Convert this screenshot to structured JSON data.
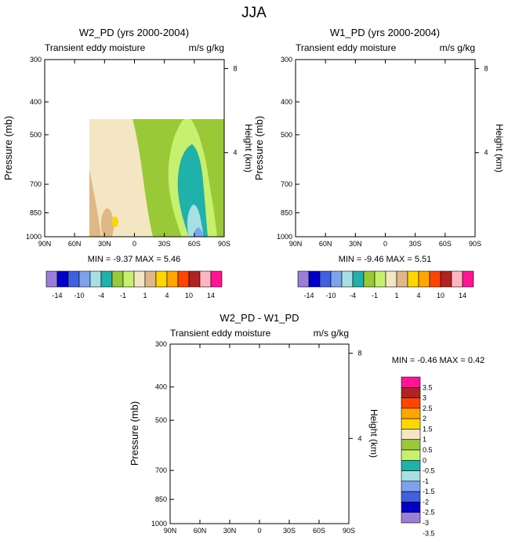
{
  "figure": {
    "title": "JJA",
    "left_panel_note": "MIN = -9.37  MAX =  5.46",
    "right_panel_note": "MIN = -9.46  MAX =  5.51",
    "bottom_panel_note": "MIN = -0.46  MAX =  0.42"
  },
  "colors": {
    "main_scale": [
      "#9b7fd6",
      "#0000c8",
      "#4060e0",
      "#7ea2ec",
      "#a8dfe3",
      "#20b2aa",
      "#99c936",
      "#c6f06e",
      "#f5e6c3",
      "#deb887",
      "#ffd700",
      "#ffa500",
      "#ff4500",
      "#b22222",
      "#ffb6c1",
      "#ff1493"
    ],
    "diff_scale": [
      "#9b7fd6",
      "#0000c8",
      "#4060e0",
      "#7ea2ec",
      "#a8dfe3",
      "#20b2aa",
      "#c6f06e",
      "#99c936",
      "#f5e6c3",
      "#ffd700",
      "#ffa500",
      "#ff4500",
      "#b22222",
      "#ff1493"
    ]
  },
  "chart_data": [
    {
      "id": "w2",
      "type": "heatmap",
      "title": "W2_PD (yrs 2000-2004)",
      "subtitle_left": "Transient eddy moisture",
      "subtitle_right": "m/s g/kg",
      "xlabel": "",
      "ylabel": "Pressure (mb)",
      "ylabel_right": "Height (km)",
      "xlim": [
        90,
        -90
      ],
      "ylim": [
        1000,
        300
      ],
      "x_ticks": [
        "90N",
        "60N",
        "30N",
        "0",
        "30S",
        "60S",
        "90S"
      ],
      "y_ticks": [
        300,
        400,
        500,
        700,
        850,
        1000
      ],
      "y_right_ticks": [
        4,
        8
      ],
      "min": -9.37,
      "max": 5.46,
      "levels": [
        -14,
        -12,
        -10,
        -8,
        -6,
        -4,
        -2,
        -1,
        0,
        1,
        2,
        4,
        6,
        10,
        12,
        14
      ],
      "colorbar_labels": [
        "-14",
        "-10",
        "-4",
        "-1",
        "1",
        "4",
        "10",
        "14"
      ]
    },
    {
      "id": "w1",
      "type": "heatmap",
      "title": "W1_PD (yrs 2000-2004)",
      "subtitle_left": "Transient eddy moisture",
      "subtitle_right": "m/s g/kg",
      "xlabel": "",
      "ylabel": "Pressure (mb)",
      "ylabel_right": "Height (km)",
      "xlim": [
        90,
        -90
      ],
      "ylim": [
        1000,
        300
      ],
      "x_ticks": [
        "90N",
        "60N",
        "30N",
        "0",
        "30S",
        "60S",
        "90S"
      ],
      "y_ticks": [
        300,
        400,
        500,
        700,
        850,
        1000
      ],
      "y_right_ticks": [
        4,
        8
      ],
      "min": -9.46,
      "max": 5.51,
      "levels": [
        -14,
        -12,
        -10,
        -8,
        -6,
        -4,
        -2,
        -1,
        0,
        1,
        2,
        4,
        6,
        10,
        12,
        14
      ],
      "colorbar_labels": [
        "-14",
        "-10",
        "-4",
        "-1",
        "1",
        "4",
        "10",
        "14"
      ]
    },
    {
      "id": "diff",
      "type": "heatmap",
      "title": "W2_PD - W1_PD",
      "subtitle_left": "Transient eddy moisture",
      "subtitle_right": "m/s g/kg",
      "xlabel": "",
      "ylabel": "Pressure (mb)",
      "ylabel_right": "Height (km)",
      "xlim": [
        90,
        -90
      ],
      "ylim": [
        1000,
        300
      ],
      "x_ticks": [
        "90N",
        "60N",
        "30N",
        "0",
        "30S",
        "60S",
        "90S"
      ],
      "y_ticks": [
        300,
        400,
        500,
        700,
        850,
        1000
      ],
      "y_right_ticks": [
        4,
        8
      ],
      "min": -0.46,
      "max": 0.42,
      "levels": [
        -3.5,
        -3,
        -2.5,
        -2,
        -1.5,
        -1,
        -0.5,
        0,
        0.5,
        1,
        1.5,
        2,
        2.5,
        3,
        3.5
      ],
      "colorbar_labels": [
        "3.5",
        "3",
        "2.5",
        "2",
        "1.5",
        "1",
        "0.5",
        "0",
        "-0.5",
        "-1",
        "-1.5",
        "-2",
        "-2.5",
        "-3",
        "-3.5"
      ]
    }
  ]
}
